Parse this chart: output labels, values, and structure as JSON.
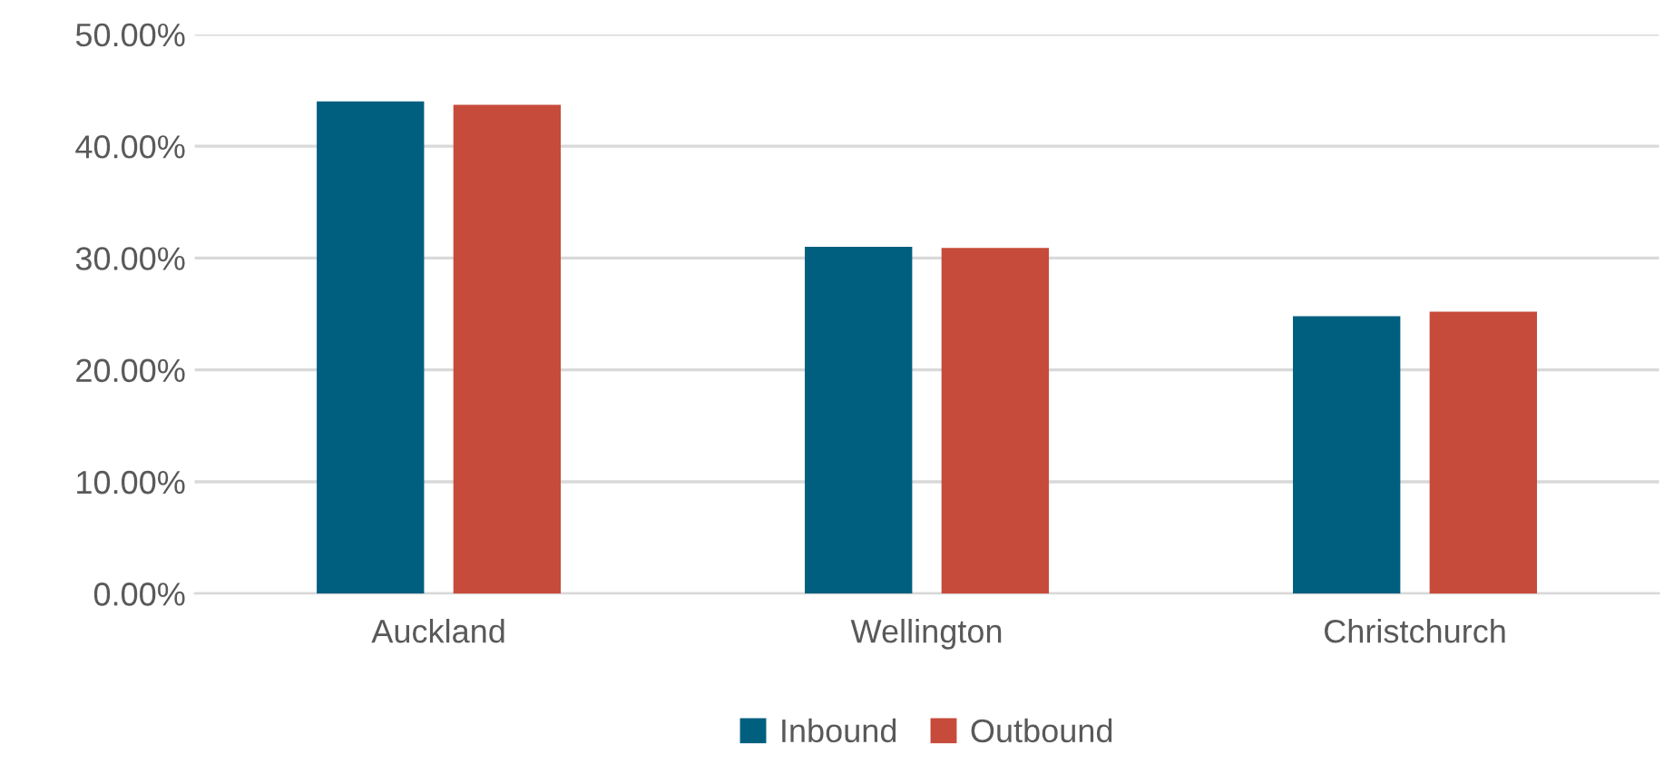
{
  "chart_data": {
    "type": "bar",
    "categories": [
      "Auckland",
      "Wellington",
      "Christchurch"
    ],
    "series": [
      {
        "name": "Inbound",
        "color": "#005f7f",
        "values": [
          44.0,
          31.0,
          24.8
        ]
      },
      {
        "name": "Outbound",
        "color": "#c74b3a",
        "values": [
          43.7,
          30.9,
          25.2
        ]
      }
    ],
    "ylim": [
      0,
      50
    ],
    "yticks": [
      {
        "value": 0,
        "label": "0.00%"
      },
      {
        "value": 10,
        "label": "10.00%"
      },
      {
        "value": 20,
        "label": "20.00%"
      },
      {
        "value": 30,
        "label": "30.00%"
      },
      {
        "value": 40,
        "label": "40.00%"
      },
      {
        "value": 50,
        "label": "50.00%"
      }
    ],
    "grid": "y",
    "legend": "bottom"
  }
}
